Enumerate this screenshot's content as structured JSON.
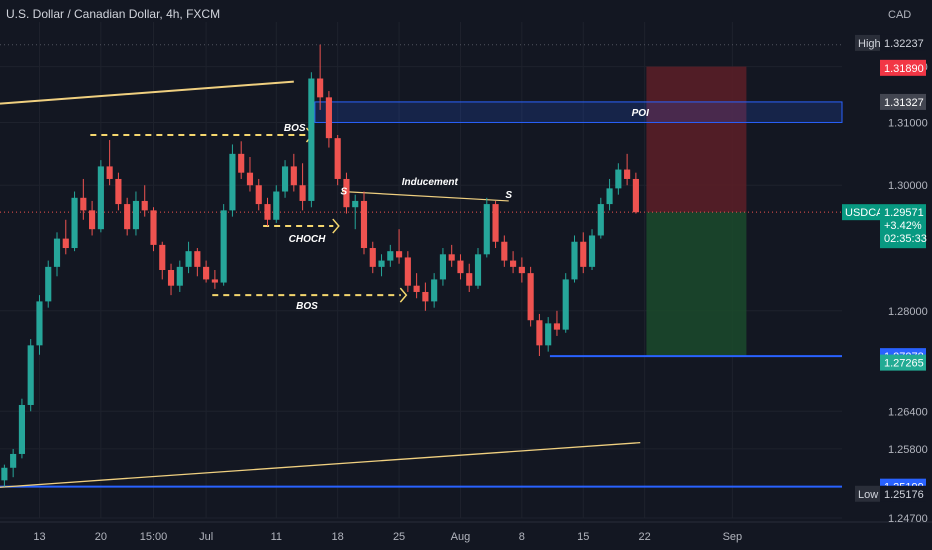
{
  "header": {
    "title": "U.S. Dollar / Canadian Dollar, 4h, FXCM",
    "currency": "CAD"
  },
  "chart_data": {
    "type": "candlestick",
    "symbol": "USDCAD",
    "interval": "4h",
    "source": "FXCM",
    "ylim": [
      1.247,
      1.326
    ],
    "grid": true,
    "y_ticks": [
      "1.31890",
      "1.31000",
      "1.30000",
      "1.28000",
      "1.26400",
      "1.25800",
      "1.24700"
    ],
    "x_ticks": [
      {
        "label": "13",
        "t": 5
      },
      {
        "label": "20",
        "t": 12
      },
      {
        "label": "15:00",
        "t": 18
      },
      {
        "label": "Jul",
        "t": 24
      },
      {
        "label": "11",
        "t": 32
      },
      {
        "label": "18",
        "t": 39
      },
      {
        "label": "25",
        "t": 46
      },
      {
        "label": "Aug",
        "t": 53
      },
      {
        "label": "8",
        "t": 60
      },
      {
        "label": "15",
        "t": 67
      },
      {
        "label": "22",
        "t": 74
      },
      {
        "label": "Sep",
        "t": 84
      }
    ],
    "t_range": [
      0.5,
      96.5
    ],
    "price_tags": [
      {
        "key": "high",
        "name": "High",
        "value": "1.32237",
        "price": 1.32237,
        "color": "#131722",
        "text_color": "#d1d4dc",
        "label_bg": "#2a2e39"
      },
      {
        "key": "stop",
        "value": "1.31890",
        "price": 1.3189,
        "color": "#f23645",
        "text_color": "#ffffff"
      },
      {
        "key": "poi",
        "value": "1.31327",
        "price": 1.31327,
        "color": "#434651",
        "text_color": "#ffffff"
      },
      {
        "key": "current",
        "name": "USDCAD",
        "value": "1.29571",
        "change": "+3.42%",
        "countdown": "02:35:33",
        "price": 1.29571,
        "color": "#089981",
        "text_color": "#ffffff"
      },
      {
        "key": "support",
        "value": "1.27278",
        "price": 1.27278,
        "color": "#2962ff",
        "text_color": "#ffffff"
      },
      {
        "key": "target",
        "value": "1.27265",
        "price": 1.27265,
        "color": "#22ab94",
        "text_color": "#ffffff"
      },
      {
        "key": "level",
        "value": "1.25199",
        "price": 1.25199,
        "color": "#2962ff",
        "text_color": "#ffffff"
      },
      {
        "key": "low",
        "name": "Low",
        "value": "1.25176",
        "price": 1.25176,
        "color": "#131722",
        "text_color": "#d1d4dc",
        "label_bg": "#2a2e39"
      }
    ],
    "annotations": {
      "poi": "POI",
      "bos_top": "BOS",
      "bos_bottom": "BOS",
      "choch": "CHOCH",
      "inducement": "Inducement",
      "s_left": "S",
      "s_right": "S"
    },
    "colors": {
      "up": "#26a69a",
      "down": "#ef5350",
      "trendline": "#f0d080",
      "dashed": "#f5d76e",
      "zone": "#2962ff",
      "stop_zone": "#5d1f27",
      "target_zone": "#1b4a2b",
      "current_line": "#ef5350"
    },
    "candles": [
      [
        1.253,
        1.2555,
        1.252,
        1.255
      ],
      [
        1.255,
        1.258,
        1.2535,
        1.2572
      ],
      [
        1.2572,
        1.266,
        1.2565,
        1.265
      ],
      [
        1.265,
        1.2755,
        1.264,
        1.2745
      ],
      [
        1.2745,
        1.2825,
        1.273,
        1.2815
      ],
      [
        1.2815,
        1.288,
        1.2805,
        1.287
      ],
      [
        1.287,
        1.2925,
        1.2855,
        1.2915
      ],
      [
        1.2915,
        1.2945,
        1.289,
        1.29
      ],
      [
        1.29,
        1.299,
        1.2895,
        1.298
      ],
      [
        1.298,
        1.301,
        1.2945,
        1.296
      ],
      [
        1.296,
        1.2975,
        1.292,
        1.293
      ],
      [
        1.293,
        1.304,
        1.2925,
        1.303
      ],
      [
        1.303,
        1.3072,
        1.3,
        1.301
      ],
      [
        1.301,
        1.302,
        1.296,
        1.297
      ],
      [
        1.297,
        1.298,
        1.292,
        1.293
      ],
      [
        1.293,
        1.299,
        1.292,
        1.2975
      ],
      [
        1.2975,
        1.3,
        1.295,
        1.296
      ],
      [
        1.296,
        1.2965,
        1.2895,
        1.2905
      ],
      [
        1.2905,
        1.291,
        1.285,
        1.2865
      ],
      [
        1.2865,
        1.2875,
        1.2825,
        1.284
      ],
      [
        1.284,
        1.288,
        1.283,
        1.287
      ],
      [
        1.287,
        1.291,
        1.286,
        1.2895
      ],
      [
        1.2895,
        1.29,
        1.2855,
        1.287
      ],
      [
        1.287,
        1.288,
        1.2845,
        1.285
      ],
      [
        1.285,
        1.2865,
        1.2835,
        1.2845
      ],
      [
        1.2845,
        1.297,
        1.284,
        1.296
      ],
      [
        1.296,
        1.3065,
        1.295,
        1.305
      ],
      [
        1.305,
        1.307,
        1.301,
        1.302
      ],
      [
        1.302,
        1.3045,
        1.299,
        1.3
      ],
      [
        1.3,
        1.301,
        1.296,
        1.297
      ],
      [
        1.297,
        1.298,
        1.2935,
        1.2945
      ],
      [
        1.2945,
        1.3,
        1.294,
        1.299
      ],
      [
        1.299,
        1.304,
        1.298,
        1.303
      ],
      [
        1.303,
        1.305,
        1.299,
        1.3
      ],
      [
        1.3,
        1.3035,
        1.296,
        1.2975
      ],
      [
        1.2975,
        1.318,
        1.2965,
        1.317
      ],
      [
        1.317,
        1.3224,
        1.312,
        1.314
      ],
      [
        1.314,
        1.315,
        1.306,
        1.3075
      ],
      [
        1.3075,
        1.308,
        1.3,
        1.301
      ],
      [
        1.301,
        1.302,
        1.2955,
        1.2965
      ],
      [
        1.2965,
        1.2985,
        1.293,
        1.2975
      ],
      [
        1.2975,
        1.299,
        1.289,
        1.29
      ],
      [
        1.29,
        1.291,
        1.286,
        1.287
      ],
      [
        1.287,
        1.289,
        1.2855,
        1.288
      ],
      [
        1.288,
        1.2905,
        1.287,
        1.2895
      ],
      [
        1.2895,
        1.293,
        1.2875,
        1.2885
      ],
      [
        1.2885,
        1.2895,
        1.283,
        1.284
      ],
      [
        1.284,
        1.286,
        1.282,
        1.283
      ],
      [
        1.283,
        1.2845,
        1.28,
        1.2815
      ],
      [
        1.2815,
        1.286,
        1.2805,
        1.285
      ],
      [
        1.285,
        1.29,
        1.284,
        1.289
      ],
      [
        1.289,
        1.2905,
        1.287,
        1.288
      ],
      [
        1.288,
        1.289,
        1.285,
        1.286
      ],
      [
        1.286,
        1.2875,
        1.283,
        1.284
      ],
      [
        1.284,
        1.29,
        1.2835,
        1.289
      ],
      [
        1.289,
        1.298,
        1.2885,
        1.297
      ],
      [
        1.297,
        1.2975,
        1.29,
        1.291
      ],
      [
        1.291,
        1.292,
        1.287,
        1.288
      ],
      [
        1.288,
        1.2895,
        1.286,
        1.287
      ],
      [
        1.287,
        1.2885,
        1.2845,
        1.286
      ],
      [
        1.286,
        1.287,
        1.2775,
        1.2785
      ],
      [
        1.2785,
        1.2795,
        1.2728,
        1.2745
      ],
      [
        1.2745,
        1.279,
        1.2735,
        1.278
      ],
      [
        1.278,
        1.28,
        1.276,
        1.277
      ],
      [
        1.277,
        1.286,
        1.2765,
        1.285
      ],
      [
        1.285,
        1.292,
        1.2845,
        1.291
      ],
      [
        1.291,
        1.2925,
        1.286,
        1.287
      ],
      [
        1.287,
        1.293,
        1.2865,
        1.292
      ],
      [
        1.292,
        1.298,
        1.2915,
        1.297
      ],
      [
        1.297,
        1.301,
        1.296,
        1.2995
      ],
      [
        1.2995,
        1.3035,
        1.2985,
        1.3025
      ],
      [
        1.3025,
        1.305,
        1.3,
        1.301
      ],
      [
        1.301,
        1.302,
        1.2955,
        1.2957
      ]
    ]
  }
}
